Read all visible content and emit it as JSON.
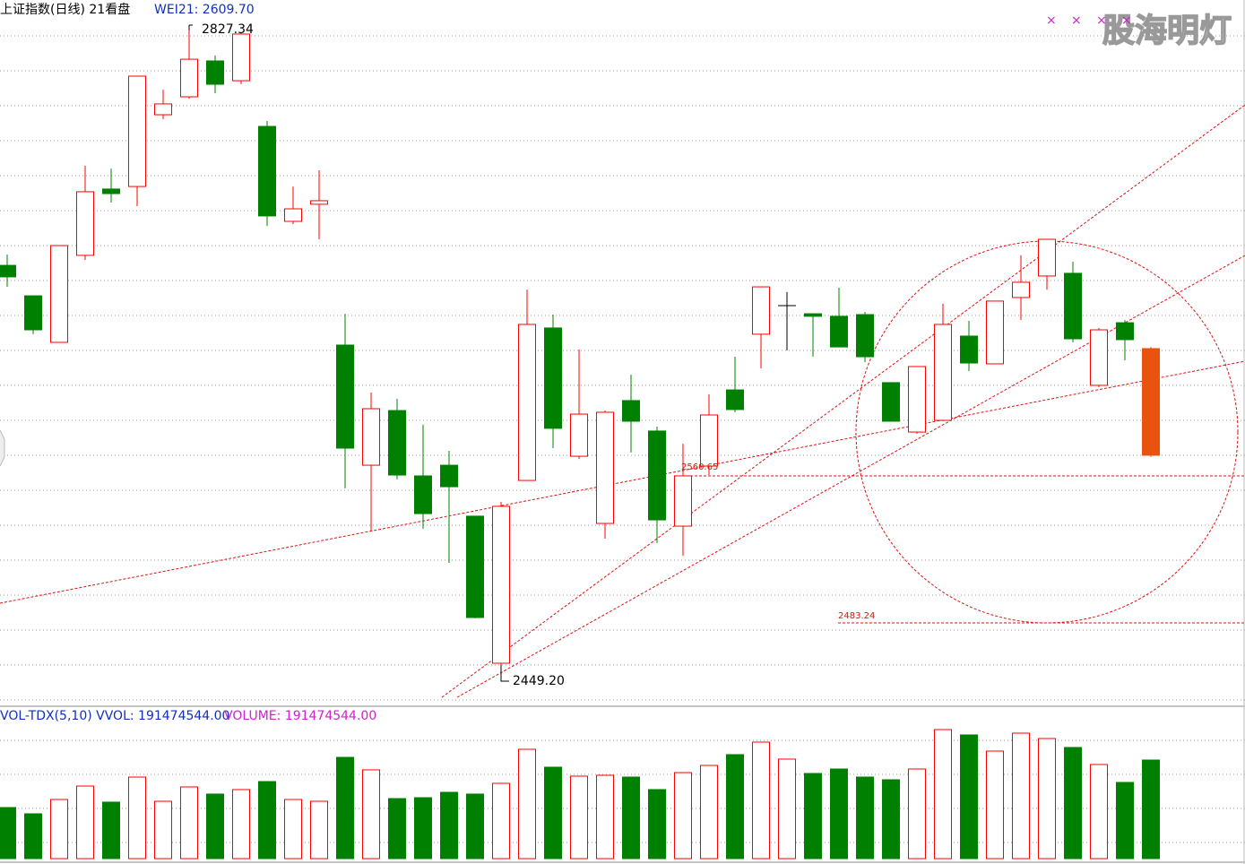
{
  "chart_data": [
    {
      "type": "candlestick",
      "title": "上证指数(日线) 21看盘",
      "subtitle": "WEI21: 2609.70",
      "ylim": [
        2425.4,
        2842.2
      ],
      "up_color": "#ff0000",
      "down_color": "#008000",
      "last_color": "#e8530f",
      "open": [
        2685.4,
        2667.4,
        2639.9,
        2691.3,
        2730.5,
        2732.0,
        2774.4,
        2785.0,
        2806.2,
        2794.5,
        2767.5,
        2711.4,
        2721.5,
        2638.3,
        2567.3,
        2599.6,
        2561.0,
        2567.3,
        2537.2,
        2450.3,
        2558.3,
        2648.4,
        2572.6,
        2532.9,
        2605.5,
        2587.5,
        2531.3,
        2566.8,
        2611.8,
        2644.7,
        2661.6,
        2656.8,
        2655.3,
        2656.3,
        2616.1,
        2586.9,
        2593.8,
        2643.6,
        2627.2,
        2666.4,
        2679.1,
        2680.7,
        2614.5,
        2651.5,
        2636.2
      ],
      "high": [
        2691.8,
        2667.4,
        2697.1,
        2744.2,
        2742.6,
        2797.2,
        2789.2,
        2827.34,
        2809.4,
        2823.1,
        2770.7,
        2732.0,
        2741.6,
        2656.8,
        2610.2,
        2606.5,
        2591.2,
        2575.8,
        2537.2,
        2545.6,
        2671.1,
        2656.3,
        2635.7,
        2599.6,
        2620.8,
        2590.1,
        2580.0,
        2609.2,
        2631.4,
        2672.7,
        2669.6,
        2656.8,
        2672.2,
        2657.9,
        2616.1,
        2625.6,
        2662.7,
        2652.6,
        2664.3,
        2691.3,
        2700.8,
        2687.6,
        2648.4,
        2653.1,
        2637.2
      ],
      "low": [
        2672.7,
        2644.7,
        2639.9,
        2688.6,
        2722.5,
        2720.4,
        2771.8,
        2783.9,
        2787.1,
        2792.4,
        2708.7,
        2709.8,
        2700.8,
        2553.6,
        2528.7,
        2558.9,
        2529.7,
        2509.6,
        2476.8,
        2449.2,
        2558.3,
        2577.4,
        2571.0,
        2523.9,
        2574.8,
        2521.3,
        2513.8,
        2561.5,
        2598.6,
        2624.5,
        2635.1,
        2631.4,
        2637.2,
        2628.2,
        2593.3,
        2585.9,
        2593.3,
        2622.9,
        2627.2,
        2653.1,
        2671.1,
        2639.9,
        2613.4,
        2629.3,
        2572.1
      ],
      "close": [
        2678.6,
        2647.3,
        2697.1,
        2728.9,
        2727.8,
        2797.2,
        2780.8,
        2807.2,
        2792.4,
        2822.1,
        2714.6,
        2718.8,
        2723.6,
        2577.4,
        2600.7,
        2561.5,
        2538.7,
        2554.6,
        2477.3,
        2543.0,
        2650.5,
        2589.1,
        2597.5,
        2598.6,
        2593.3,
        2535.0,
        2561.0,
        2597.0,
        2600.2,
        2672.7,
        2661.6,
        2655.3,
        2637.2,
        2631.4,
        2593.3,
        2625.6,
        2650.5,
        2627.7,
        2664.3,
        2675.4,
        2700.8,
        2642.0,
        2647.3,
        2641.5,
        2573.2
      ],
      "annotations": [
        "2827.34",
        "2449.20",
        "2560.65",
        "2483.24"
      ],
      "watermark": "股海明灯"
    },
    {
      "type": "bar",
      "title": "VOL-TDX(5,10) VVOL: 191474544.00",
      "subtitle": "VOLUME: 191474544.00",
      "ylim": [
        0,
        289000000
      ],
      "values": [
        99200000,
        87100000,
        114900000,
        141000000,
        109700000,
        158400000,
        111400000,
        139300000,
        125400000,
        134100000,
        149700000,
        114900000,
        111400000,
        196700000,
        172400000,
        116600000,
        118400000,
        128800000,
        125400000,
        146200000,
        212400000,
        177600000,
        160200000,
        161900000,
        158400000,
        134100000,
        167100000,
        181100000,
        202000000,
        226300000,
        193300000,
        165400000,
        174100000,
        158400000,
        153200000,
        174100000,
        250700000,
        240300000,
        208900000,
        243700000,
        233300000,
        215900000,
        182800000,
        148000000,
        191474544
      ]
    }
  ]
}
